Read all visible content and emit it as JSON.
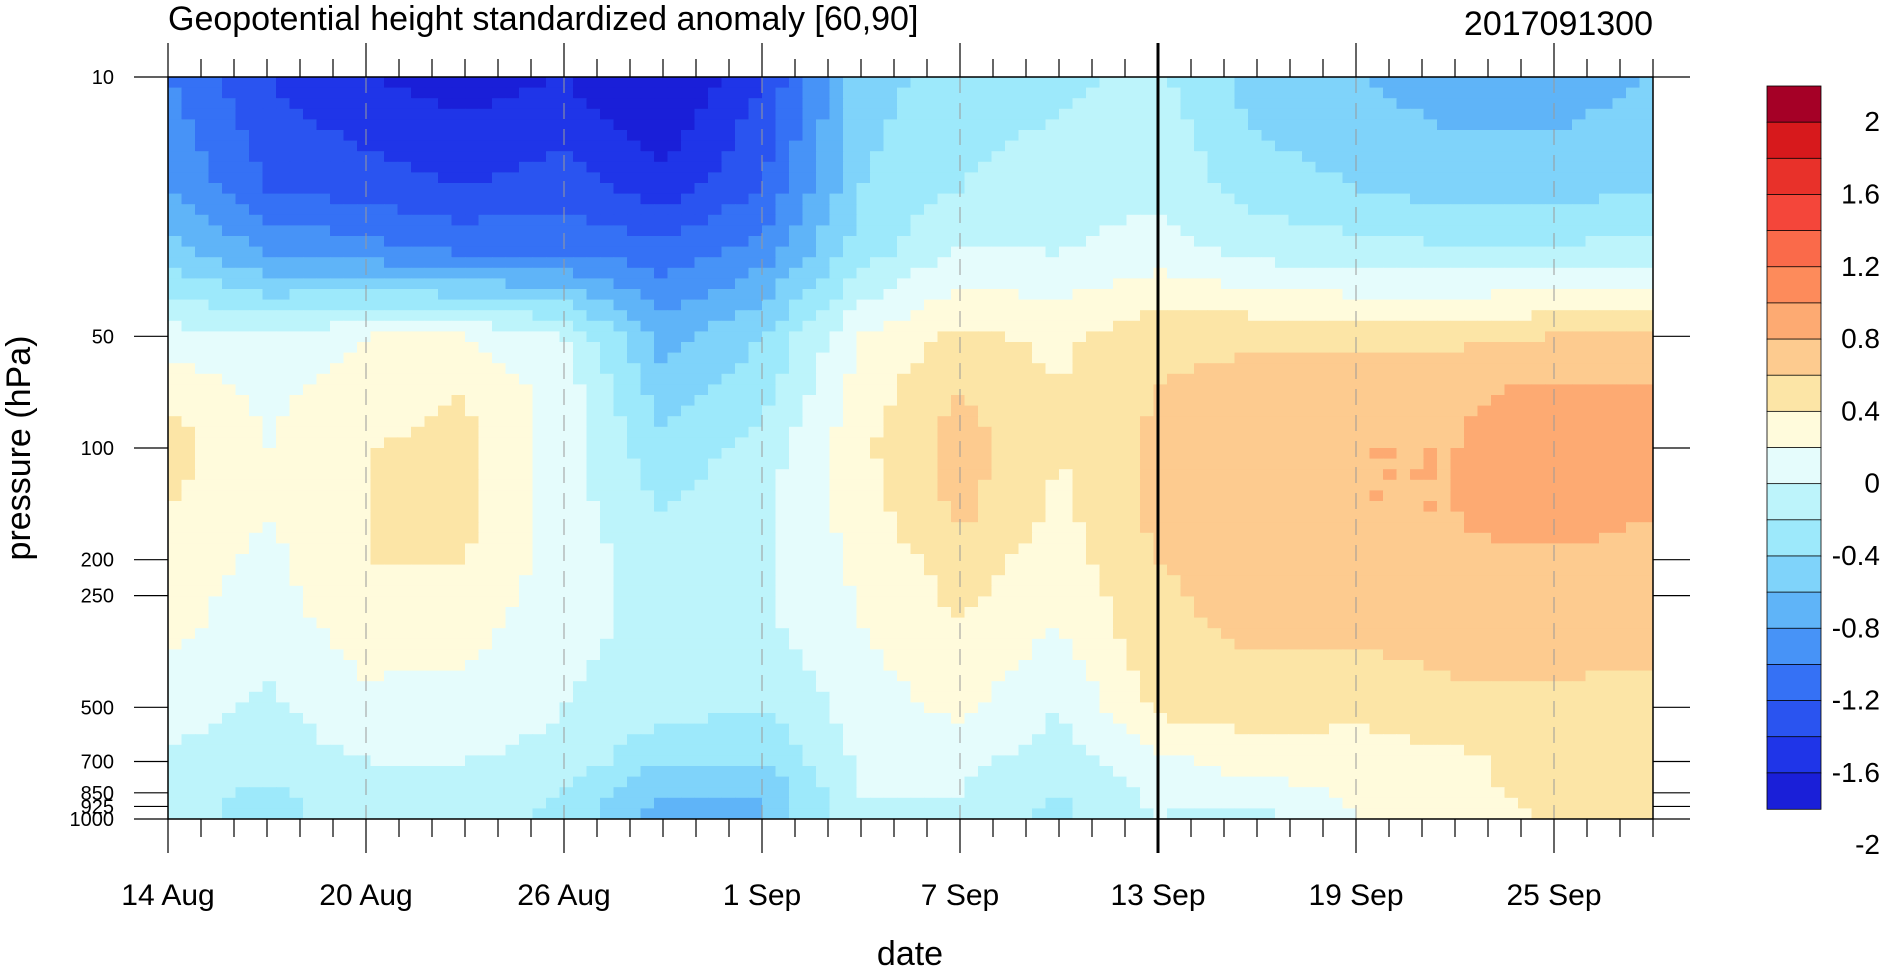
{
  "chart_data": {
    "type": "heatmap",
    "title": "Geopotential height standardized anomaly [60,90]",
    "timestamp_label": "2017091300",
    "xlabel": "date",
    "ylabel": "pressure (hPa)",
    "x_tick_labels": [
      "14 Aug",
      "20 Aug",
      "26 Aug",
      "1 Sep",
      "7 Sep",
      "13 Sep",
      "19 Sep",
      "25 Sep"
    ],
    "x_range": [
      "2017-08-14",
      "2017-09-28"
    ],
    "y_scale": "log",
    "y_range": [
      1000,
      10
    ],
    "y_tick_labels": [
      "10",
      "50",
      "100",
      "200",
      "250",
      "500",
      "700",
      "850",
      "925",
      "1000"
    ],
    "y_ticks": [
      10,
      50,
      100,
      200,
      250,
      500,
      700,
      850,
      925,
      1000
    ],
    "current_date_line": "2017-09-13",
    "colorbar": {
      "labels": [
        "2",
        "1.6",
        "1.2",
        "0.8",
        "0.4",
        "0",
        "-0.4",
        "-0.8",
        "-1.2",
        "-1.6",
        "-2"
      ],
      "levels": [
        2.2,
        2.0,
        1.8,
        1.6,
        1.4,
        1.2,
        1.0,
        0.8,
        0.6,
        0.4,
        0.2,
        0.0,
        -0.2,
        -0.4,
        -0.6,
        -0.8,
        -1.0,
        -1.2,
        -1.4,
        -1.6,
        -1.8,
        -2.0,
        -2.2
      ],
      "colors": [
        "#a50026",
        "#d7191c",
        "#e8312a",
        "#f4463a",
        "#fa6a4a",
        "#fd8b5b",
        "#fdaa72",
        "#fdcb8f",
        "#fce5a6",
        "#fffbdc",
        "#e5fcfc",
        "#bdf4fb",
        "#9de9fb",
        "#7fd3fa",
        "#5fb4f8",
        "#4793f7",
        "#3571f5",
        "#2a54f0",
        "#1f35e8",
        "#1a1fd8"
      ]
    },
    "pressure_levels": [
      10,
      20,
      30,
      50,
      70,
      100,
      150,
      200,
      300,
      500,
      700,
      850,
      1000
    ],
    "dates": [
      "14 Aug",
      "17 Aug",
      "20 Aug",
      "23 Aug",
      "26 Aug",
      "29 Aug",
      "1 Sep",
      "4 Sep",
      "7 Sep",
      "10 Sep",
      "13 Sep",
      "16 Sep",
      "19 Sep",
      "22 Sep",
      "25 Sep",
      "28 Sep"
    ],
    "anomaly": [
      [
        -1.0,
        -1.4,
        -1.6,
        -1.7,
        -1.6,
        -1.9,
        -1.4,
        -0.5,
        -0.3,
        -0.25,
        -0.15,
        -0.5,
        -0.6,
        -0.7,
        -0.7,
        -0.6
      ],
      [
        -0.8,
        -1.2,
        -1.3,
        -1.4,
        -1.3,
        -1.5,
        -1.2,
        -0.4,
        -0.2,
        -0.1,
        -0.05,
        -0.3,
        -0.4,
        -0.5,
        -0.5,
        -0.4
      ],
      [
        -0.5,
        -0.8,
        -0.9,
        -1.0,
        -1.0,
        -1.1,
        -0.9,
        -0.3,
        0.05,
        0.0,
        0.1,
        -0.05,
        -0.1,
        -0.15,
        -0.15,
        -0.1
      ],
      [
        0.1,
        0.0,
        0.2,
        0.2,
        0.0,
        -0.7,
        -0.4,
        0.2,
        0.45,
        0.35,
        0.55,
        0.55,
        0.5,
        0.55,
        0.6,
        0.6
      ],
      [
        0.35,
        0.15,
        0.3,
        0.4,
        0.1,
        -0.5,
        -0.3,
        0.3,
        0.6,
        0.4,
        0.6,
        0.7,
        0.75,
        0.75,
        0.85,
        0.8
      ],
      [
        0.5,
        0.2,
        0.4,
        0.45,
        0.1,
        -0.35,
        -0.1,
        0.35,
        0.7,
        0.4,
        0.65,
        0.75,
        0.8,
        0.8,
        1.0,
        0.9
      ],
      [
        0.4,
        0.2,
        0.4,
        0.45,
        0.1,
        -0.2,
        -0.05,
        0.3,
        0.65,
        0.35,
        0.65,
        0.75,
        0.8,
        0.8,
        0.95,
        0.8
      ],
      [
        0.3,
        0.15,
        0.4,
        0.4,
        0.1,
        -0.1,
        -0.05,
        0.25,
        0.5,
        0.3,
        0.6,
        0.7,
        0.7,
        0.75,
        0.75,
        0.7
      ],
      [
        0.25,
        0.1,
        0.3,
        0.3,
        0.05,
        -0.05,
        -0.05,
        0.2,
        0.4,
        0.2,
        0.55,
        0.65,
        0.65,
        0.7,
        0.7,
        0.65
      ],
      [
        0.1,
        -0.05,
        0.15,
        0.1,
        0.0,
        -0.1,
        -0.2,
        0.1,
        0.25,
        0.0,
        0.45,
        0.5,
        0.45,
        0.55,
        0.55,
        0.55
      ],
      [
        -0.05,
        -0.1,
        0.0,
        0.0,
        -0.05,
        -0.4,
        -0.4,
        0.05,
        0.05,
        -0.1,
        0.15,
        0.3,
        0.3,
        0.35,
        0.5,
        0.5
      ],
      [
        -0.1,
        -0.25,
        -0.05,
        -0.05,
        -0.2,
        -0.6,
        -0.6,
        0.0,
        0.0,
        -0.2,
        0.05,
        0.1,
        0.25,
        0.35,
        0.45,
        0.45
      ],
      [
        -0.1,
        -0.3,
        -0.05,
        -0.05,
        -0.3,
        -0.7,
        -0.6,
        0.0,
        -0.1,
        -0.25,
        0.0,
        -0.1,
        0.2,
        0.35,
        0.4,
        0.4
      ]
    ]
  }
}
